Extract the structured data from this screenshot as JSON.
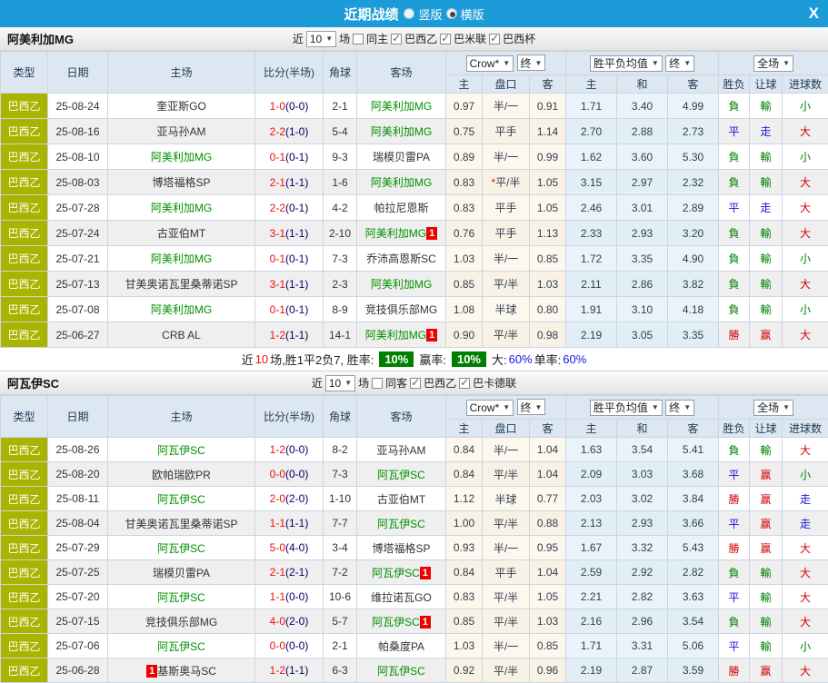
{
  "topbar": {
    "title": "近期战绩",
    "radio_vertical": "竖版",
    "radio_horizontal": "横版",
    "close": "X"
  },
  "columns": {
    "left": [
      "类型",
      "日期",
      "主场",
      "比分(半场)",
      "角球",
      "客场"
    ],
    "group1_selects": [
      "Crow*",
      "终"
    ],
    "group2_selects": [
      "胜平负均值",
      "终"
    ],
    "group3_selects": [
      "全场"
    ],
    "sub": [
      "主",
      "盘口",
      "客",
      "主",
      "和",
      "客",
      "胜负",
      "让球",
      "进球数"
    ]
  },
  "sections": [
    {
      "team": "阿美利加MG",
      "filters": {
        "near": "近",
        "count": "10",
        "games": "场",
        "same": "同主",
        "same_checked": false,
        "leagues": [
          {
            "label": "巴西乙",
            "checked": true
          },
          {
            "label": "巴米联",
            "checked": true
          },
          {
            "label": "巴西杯",
            "checked": true
          }
        ]
      },
      "rows": [
        {
          "league": "巴西乙",
          "date": "25-08-24",
          "home": "奎亚斯GO",
          "home_hl": false,
          "home_badge": null,
          "ft": "1-0",
          "ht": "0-0",
          "corner": "2-1",
          "away": "阿美利加MG",
          "away_hl": true,
          "away_badge": null,
          "o1": "0.97",
          "pan": "半/一",
          "pan_star": false,
          "o2": "0.91",
          "e1": "1.71",
          "e2": "3.40",
          "e3": "4.99",
          "r1": {
            "t": "負",
            "c": "g"
          },
          "r2": {
            "t": "輸",
            "c": "g"
          },
          "r3": {
            "t": "小",
            "c": "g"
          }
        },
        {
          "league": "巴西乙",
          "date": "25-08-16",
          "home": "亚马孙AM",
          "home_hl": false,
          "home_badge": null,
          "ft": "2-2",
          "ht": "1-0",
          "corner": "5-4",
          "away": "阿美利加MG",
          "away_hl": true,
          "away_badge": null,
          "o1": "0.75",
          "pan": "平手",
          "pan_star": false,
          "o2": "1.14",
          "e1": "2.70",
          "e2": "2.88",
          "e3": "2.73",
          "r1": {
            "t": "平",
            "c": "b"
          },
          "r2": {
            "t": "走",
            "c": "b"
          },
          "r3": {
            "t": "大",
            "c": "r"
          }
        },
        {
          "league": "巴西乙",
          "date": "25-08-10",
          "home": "阿美利加MG",
          "home_hl": true,
          "home_badge": null,
          "ft": "0-1",
          "ht": "0-1",
          "corner": "9-3",
          "away": "瑞模贝雷PA",
          "away_hl": false,
          "away_badge": null,
          "o1": "0.89",
          "pan": "半/一",
          "pan_star": false,
          "o2": "0.99",
          "e1": "1.62",
          "e2": "3.60",
          "e3": "5.30",
          "r1": {
            "t": "負",
            "c": "g"
          },
          "r2": {
            "t": "輸",
            "c": "g"
          },
          "r3": {
            "t": "小",
            "c": "g"
          }
        },
        {
          "league": "巴西乙",
          "date": "25-08-03",
          "home": "博塔福格SP",
          "home_hl": false,
          "home_badge": null,
          "ft": "2-1",
          "ht": "1-1",
          "corner": "1-6",
          "away": "阿美利加MG",
          "away_hl": true,
          "away_badge": null,
          "o1": "0.83",
          "pan": "平/半",
          "pan_star": true,
          "o2": "1.05",
          "e1": "3.15",
          "e2": "2.97",
          "e3": "2.32",
          "r1": {
            "t": "負",
            "c": "g"
          },
          "r2": {
            "t": "輸",
            "c": "g"
          },
          "r3": {
            "t": "大",
            "c": "r"
          }
        },
        {
          "league": "巴西乙",
          "date": "25-07-28",
          "home": "阿美利加MG",
          "home_hl": true,
          "home_badge": null,
          "ft": "2-2",
          "ht": "0-1",
          "corner": "4-2",
          "away": "帕拉尼恩斯",
          "away_hl": false,
          "away_badge": null,
          "o1": "0.83",
          "pan": "平手",
          "pan_star": false,
          "o2": "1.05",
          "e1": "2.46",
          "e2": "3.01",
          "e3": "2.89",
          "r1": {
            "t": "平",
            "c": "b"
          },
          "r2": {
            "t": "走",
            "c": "b"
          },
          "r3": {
            "t": "大",
            "c": "r"
          }
        },
        {
          "league": "巴西乙",
          "date": "25-07-24",
          "home": "古亚伯MT",
          "home_hl": false,
          "home_badge": null,
          "ft": "3-1",
          "ht": "1-1",
          "corner": "2-10",
          "away": "阿美利加MG",
          "away_hl": true,
          "away_badge": "1",
          "o1": "0.76",
          "pan": "平手",
          "pan_star": false,
          "o2": "1.13",
          "e1": "2.33",
          "e2": "2.93",
          "e3": "3.20",
          "r1": {
            "t": "負",
            "c": "g"
          },
          "r2": {
            "t": "輸",
            "c": "g"
          },
          "r3": {
            "t": "大",
            "c": "r"
          }
        },
        {
          "league": "巴西乙",
          "date": "25-07-21",
          "home": "阿美利加MG",
          "home_hl": true,
          "home_badge": null,
          "ft": "0-1",
          "ht": "0-1",
          "corner": "7-3",
          "away": "乔沛高恩斯SC",
          "away_hl": false,
          "away_badge": null,
          "o1": "1.03",
          "pan": "半/一",
          "pan_star": false,
          "o2": "0.85",
          "e1": "1.72",
          "e2": "3.35",
          "e3": "4.90",
          "r1": {
            "t": "負",
            "c": "g"
          },
          "r2": {
            "t": "輸",
            "c": "g"
          },
          "r3": {
            "t": "小",
            "c": "g"
          }
        },
        {
          "league": "巴西乙",
          "date": "25-07-13",
          "home": "甘美奥诺瓦里桑蒂诺SP",
          "home_hl": false,
          "home_badge": null,
          "ft": "3-1",
          "ht": "1-1",
          "corner": "2-3",
          "away": "阿美利加MG",
          "away_hl": true,
          "away_badge": null,
          "o1": "0.85",
          "pan": "平/半",
          "pan_star": false,
          "o2": "1.03",
          "e1": "2.11",
          "e2": "2.86",
          "e3": "3.82",
          "r1": {
            "t": "負",
            "c": "g"
          },
          "r2": {
            "t": "輸",
            "c": "g"
          },
          "r3": {
            "t": "大",
            "c": "r"
          }
        },
        {
          "league": "巴西乙",
          "date": "25-07-08",
          "home": "阿美利加MG",
          "home_hl": true,
          "home_badge": null,
          "ft": "0-1",
          "ht": "0-1",
          "corner": "8-9",
          "away": "竞技俱乐部MG",
          "away_hl": false,
          "away_badge": null,
          "o1": "1.08",
          "pan": "半球",
          "pan_star": false,
          "o2": "0.80",
          "e1": "1.91",
          "e2": "3.10",
          "e3": "4.18",
          "r1": {
            "t": "負",
            "c": "g"
          },
          "r2": {
            "t": "輸",
            "c": "g"
          },
          "r3": {
            "t": "小",
            "c": "g"
          }
        },
        {
          "league": "巴西乙",
          "date": "25-06-27",
          "home": "CRB AL",
          "home_hl": false,
          "home_badge": null,
          "ft": "1-2",
          "ht": "1-1",
          "corner": "14-1",
          "away": "阿美利加MG",
          "away_hl": true,
          "away_badge": "1",
          "o1": "0.90",
          "pan": "平/半",
          "pan_star": false,
          "o2": "0.98",
          "e1": "2.19",
          "e2": "3.05",
          "e3": "3.35",
          "r1": {
            "t": "勝",
            "c": "r"
          },
          "r2": {
            "t": "赢",
            "c": "r"
          },
          "r3": {
            "t": "大",
            "c": "r"
          }
        }
      ],
      "summary": {
        "prefix": "近",
        "count": "10",
        "mid": "场,胜1平2负7, 胜率:",
        "rate1": "10%",
        "label2": "赢率:",
        "rate2": "10%",
        "label3": "大:",
        "val3": "60%",
        "label4": "单率:",
        "val4": "60%"
      }
    },
    {
      "team": "阿瓦伊SC",
      "filters": {
        "near": "近",
        "count": "10",
        "games": "场",
        "same": "同客",
        "same_checked": false,
        "leagues": [
          {
            "label": "巴西乙",
            "checked": true
          },
          {
            "label": "巴卡德联",
            "checked": true
          }
        ]
      },
      "rows": [
        {
          "league": "巴西乙",
          "date": "25-08-26",
          "home": "阿瓦伊SC",
          "home_hl": true,
          "home_badge": null,
          "ft": "1-2",
          "ht": "0-0",
          "corner": "8-2",
          "away": "亚马孙AM",
          "away_hl": false,
          "away_badge": null,
          "o1": "0.84",
          "pan": "半/一",
          "pan_star": false,
          "o2": "1.04",
          "e1": "1.63",
          "e2": "3.54",
          "e3": "5.41",
          "r1": {
            "t": "負",
            "c": "g"
          },
          "r2": {
            "t": "輸",
            "c": "g"
          },
          "r3": {
            "t": "大",
            "c": "r"
          }
        },
        {
          "league": "巴西乙",
          "date": "25-08-20",
          "home": "欧帕瑞欧PR",
          "home_hl": false,
          "home_badge": null,
          "ft": "0-0",
          "ht": "0-0",
          "corner": "7-3",
          "away": "阿瓦伊SC",
          "away_hl": true,
          "away_badge": null,
          "o1": "0.84",
          "pan": "平/半",
          "pan_star": false,
          "o2": "1.04",
          "e1": "2.09",
          "e2": "3.03",
          "e3": "3.68",
          "r1": {
            "t": "平",
            "c": "b"
          },
          "r2": {
            "t": "赢",
            "c": "r"
          },
          "r3": {
            "t": "小",
            "c": "g"
          }
        },
        {
          "league": "巴西乙",
          "date": "25-08-11",
          "home": "阿瓦伊SC",
          "home_hl": true,
          "home_badge": null,
          "ft": "2-0",
          "ht": "2-0",
          "corner": "1-10",
          "away": "古亚伯MT",
          "away_hl": false,
          "away_badge": null,
          "o1": "1.12",
          "pan": "半球",
          "pan_star": false,
          "o2": "0.77",
          "e1": "2.03",
          "e2": "3.02",
          "e3": "3.84",
          "r1": {
            "t": "勝",
            "c": "r"
          },
          "r2": {
            "t": "赢",
            "c": "r"
          },
          "r3": {
            "t": "走",
            "c": "b"
          }
        },
        {
          "league": "巴西乙",
          "date": "25-08-04",
          "home": "甘美奥诺瓦里桑蒂诺SP",
          "home_hl": false,
          "home_badge": null,
          "ft": "1-1",
          "ht": "1-1",
          "corner": "7-7",
          "away": "阿瓦伊SC",
          "away_hl": true,
          "away_badge": null,
          "o1": "1.00",
          "pan": "平/半",
          "pan_star": false,
          "o2": "0.88",
          "e1": "2.13",
          "e2": "2.93",
          "e3": "3.66",
          "r1": {
            "t": "平",
            "c": "b"
          },
          "r2": {
            "t": "赢",
            "c": "r"
          },
          "r3": {
            "t": "走",
            "c": "b"
          }
        },
        {
          "league": "巴西乙",
          "date": "25-07-29",
          "home": "阿瓦伊SC",
          "home_hl": true,
          "home_badge": null,
          "ft": "5-0",
          "ht": "4-0",
          "corner": "3-4",
          "away": "博塔福格SP",
          "away_hl": false,
          "away_badge": null,
          "o1": "0.93",
          "pan": "半/一",
          "pan_star": false,
          "o2": "0.95",
          "e1": "1.67",
          "e2": "3.32",
          "e3": "5.43",
          "r1": {
            "t": "勝",
            "c": "r"
          },
          "r2": {
            "t": "赢",
            "c": "r"
          },
          "r3": {
            "t": "大",
            "c": "r"
          }
        },
        {
          "league": "巴西乙",
          "date": "25-07-25",
          "home": "瑞模贝雷PA",
          "home_hl": false,
          "home_badge": null,
          "ft": "2-1",
          "ht": "2-1",
          "corner": "7-2",
          "away": "阿瓦伊SC",
          "away_hl": true,
          "away_badge": "1",
          "o1": "0.84",
          "pan": "平手",
          "pan_star": false,
          "o2": "1.04",
          "e1": "2.59",
          "e2": "2.92",
          "e3": "2.82",
          "r1": {
            "t": "負",
            "c": "g"
          },
          "r2": {
            "t": "輸",
            "c": "g"
          },
          "r3": {
            "t": "大",
            "c": "r"
          }
        },
        {
          "league": "巴西乙",
          "date": "25-07-20",
          "home": "阿瓦伊SC",
          "home_hl": true,
          "home_badge": null,
          "ft": "1-1",
          "ht": "0-0",
          "corner": "10-6",
          "away": "维拉诺瓦GO",
          "away_hl": false,
          "away_badge": null,
          "o1": "0.83",
          "pan": "平/半",
          "pan_star": false,
          "o2": "1.05",
          "e1": "2.21",
          "e2": "2.82",
          "e3": "3.63",
          "r1": {
            "t": "平",
            "c": "b"
          },
          "r2": {
            "t": "輸",
            "c": "g"
          },
          "r3": {
            "t": "大",
            "c": "r"
          }
        },
        {
          "league": "巴西乙",
          "date": "25-07-15",
          "home": "竞技俱乐部MG",
          "home_hl": false,
          "home_badge": null,
          "ft": "4-0",
          "ht": "2-0",
          "corner": "5-7",
          "away": "阿瓦伊SC",
          "away_hl": true,
          "away_badge": "1",
          "o1": "0.85",
          "pan": "平/半",
          "pan_star": false,
          "o2": "1.03",
          "e1": "2.16",
          "e2": "2.96",
          "e3": "3.54",
          "r1": {
            "t": "負",
            "c": "g"
          },
          "r2": {
            "t": "輸",
            "c": "g"
          },
          "r3": {
            "t": "大",
            "c": "r"
          }
        },
        {
          "league": "巴西乙",
          "date": "25-07-06",
          "home": "阿瓦伊SC",
          "home_hl": true,
          "home_badge": null,
          "ft": "0-0",
          "ht": "0-0",
          "corner": "2-1",
          "away": "帕桑度PA",
          "away_hl": false,
          "away_badge": null,
          "o1": "1.03",
          "pan": "半/一",
          "pan_star": false,
          "o2": "0.85",
          "e1": "1.71",
          "e2": "3.31",
          "e3": "5.06",
          "r1": {
            "t": "平",
            "c": "b"
          },
          "r2": {
            "t": "輸",
            "c": "g"
          },
          "r3": {
            "t": "小",
            "c": "g"
          }
        },
        {
          "league": "巴西乙",
          "date": "25-06-28",
          "home": "基斯奥马SC",
          "home_hl": false,
          "home_badge": "1",
          "ft": "1-2",
          "ht": "1-1",
          "corner": "6-3",
          "away": "阿瓦伊SC",
          "away_hl": true,
          "away_badge": null,
          "o1": "0.92",
          "pan": "平/半",
          "pan_star": false,
          "o2": "0.96",
          "e1": "2.19",
          "e2": "2.87",
          "e3": "3.59",
          "r1": {
            "t": "勝",
            "c": "r"
          },
          "r2": {
            "t": "赢",
            "c": "r"
          },
          "r3": {
            "t": "大",
            "c": "r"
          }
        }
      ],
      "summary": null
    }
  ],
  "colors": {
    "topbar_blue": "#1b9cd8",
    "type_olive": "#a9b400",
    "team_green": "#009000",
    "score_red": "#ee1111",
    "halftime_navy": "#000066",
    "win_red": "#d40000",
    "lose_green": "#008000",
    "draw_blue": "#1414d4",
    "badge_red": "#ee0000",
    "pct_badge_green": "#008000"
  }
}
